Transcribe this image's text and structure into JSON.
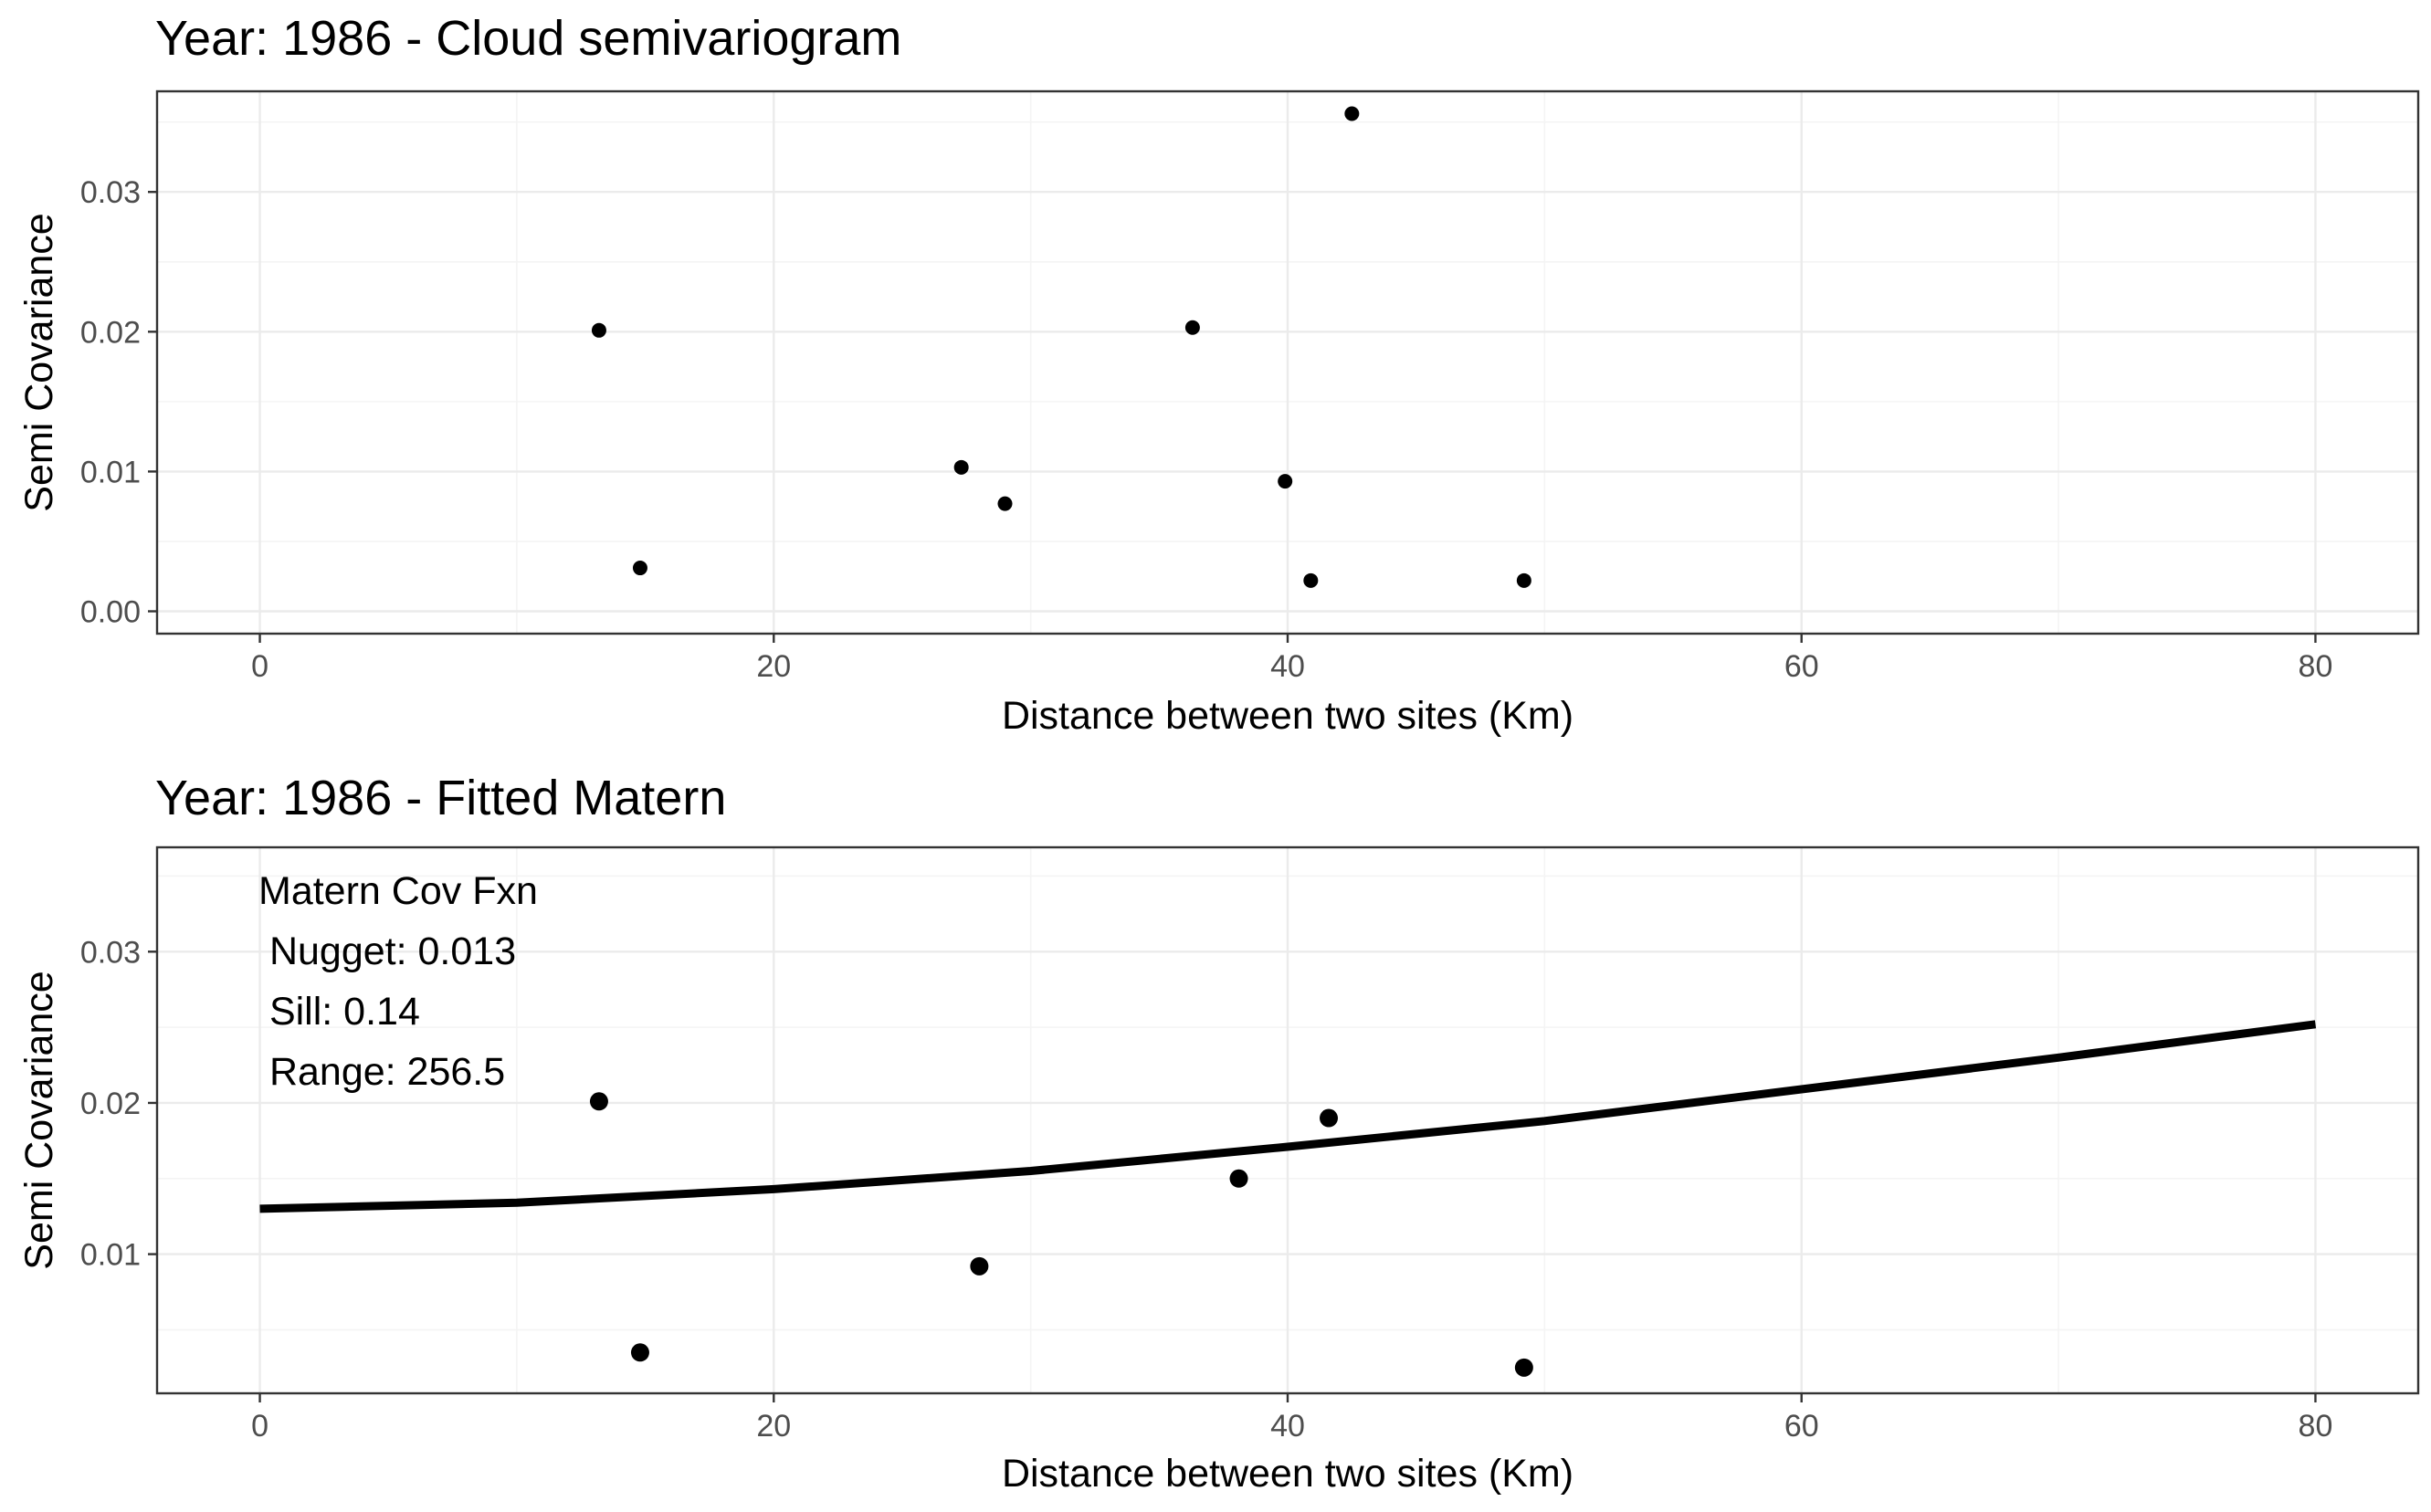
{
  "chart_data": [
    {
      "type": "scatter",
      "title": "Year: 1986 - Cloud semivariogram",
      "xlabel": "Distance between two sites (Km)",
      "ylabel": "Semi Covariance",
      "xlim": [
        -4,
        84
      ],
      "ylim": [
        -0.0016,
        0.0372
      ],
      "xticks": [
        0,
        20,
        40,
        60,
        80
      ],
      "xtick_labels": [
        "0",
        "20",
        "40",
        "60",
        "80"
      ],
      "yticks": [
        0,
        0.01,
        0.02,
        0.03
      ],
      "ytick_labels": [
        "0.00",
        "0.01",
        "0.02",
        "0.03"
      ],
      "grid": true,
      "points": [
        {
          "x": 13.2,
          "y": 0.0201
        },
        {
          "x": 14.8,
          "y": 0.0031
        },
        {
          "x": 27.3,
          "y": 0.0103
        },
        {
          "x": 29.0,
          "y": 0.0077
        },
        {
          "x": 36.3,
          "y": 0.0203
        },
        {
          "x": 39.9,
          "y": 0.0093
        },
        {
          "x": 40.9,
          "y": 0.0022
        },
        {
          "x": 42.5,
          "y": 0.0356
        },
        {
          "x": 49.2,
          "y": 0.0022
        }
      ]
    },
    {
      "type": "scatter",
      "title": "Year: 1986 - Fitted Matern",
      "xlabel": "Distance between two sites (Km)",
      "ylabel": "Semi Covariance",
      "xlim": [
        -4,
        84
      ],
      "ylim": [
        0.0008,
        0.0369
      ],
      "xticks": [
        0,
        20,
        40,
        60,
        80
      ],
      "xtick_labels": [
        "0",
        "20",
        "40",
        "60",
        "80"
      ],
      "yticks": [
        0.01,
        0.02,
        0.03
      ],
      "ytick_labels": [
        "0.01",
        "0.02",
        "0.03"
      ],
      "grid": true,
      "points": [
        {
          "x": 13.2,
          "y": 0.0201
        },
        {
          "x": 14.8,
          "y": 0.0035
        },
        {
          "x": 28.0,
          "y": 0.0092
        },
        {
          "x": 38.1,
          "y": 0.015
        },
        {
          "x": 41.6,
          "y": 0.019
        },
        {
          "x": 49.2,
          "y": 0.0025
        }
      ],
      "fitted_curve": {
        "x": [
          0,
          10,
          20,
          30,
          40,
          50,
          60,
          70,
          80
        ],
        "y": [
          0.013,
          0.0134,
          0.0143,
          0.0155,
          0.0171,
          0.0188,
          0.0209,
          0.023,
          0.0252
        ]
      },
      "annotation_lines": [
        "Matern Cov Fxn",
        " Nugget: 0.013",
        " Sill: 0.14",
        " Range: 256.5"
      ]
    }
  ]
}
